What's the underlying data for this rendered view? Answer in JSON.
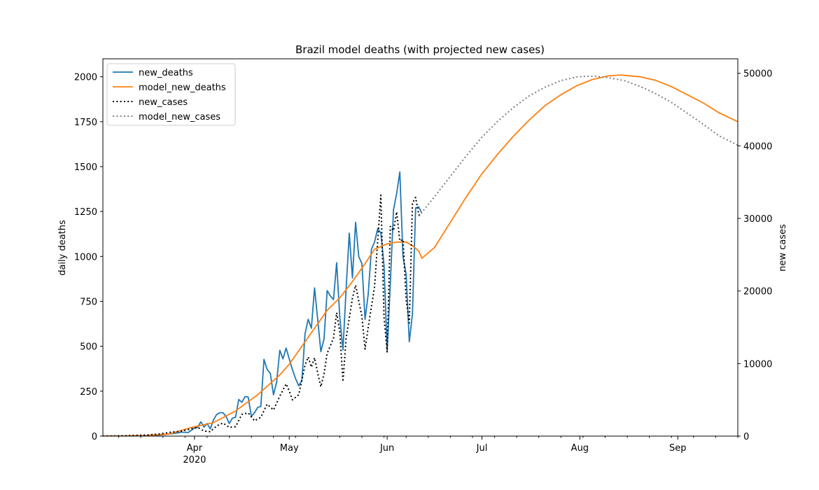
{
  "chart_data": {
    "type": "line",
    "title": "Brazil model deaths (with projected new cases)",
    "ylabel": "daily deaths",
    "y2label": "new cases",
    "xlabel": "",
    "x_range": [
      "2020-03-03",
      "2020-09-20"
    ],
    "ylim": [
      0,
      2100
    ],
    "y2lim": [
      0,
      52000
    ],
    "y_ticks": [
      0,
      250,
      500,
      750,
      1000,
      1250,
      1500,
      1750,
      2000
    ],
    "y2_ticks": [
      0,
      10000,
      20000,
      30000,
      40000,
      50000
    ],
    "x_ticks": [
      {
        "date": "2020-04-01",
        "label": "Apr",
        "sublabel": "2020"
      },
      {
        "date": "2020-05-01",
        "label": "May",
        "sublabel": ""
      },
      {
        "date": "2020-06-01",
        "label": "Jun",
        "sublabel": ""
      },
      {
        "date": "2020-07-01",
        "label": "Jul",
        "sublabel": ""
      },
      {
        "date": "2020-08-01",
        "label": "Aug",
        "sublabel": ""
      },
      {
        "date": "2020-09-01",
        "label": "Sep",
        "sublabel": ""
      }
    ],
    "legend_position": "upper-left",
    "grid": false,
    "series": [
      {
        "name": "new_deaths",
        "axis": "left",
        "color": "#1f77b4",
        "style": "solid",
        "points": [
          [
            "2020-03-03",
            0
          ],
          [
            "2020-03-10",
            0
          ],
          [
            "2020-03-17",
            1
          ],
          [
            "2020-03-20",
            4
          ],
          [
            "2020-03-23",
            10
          ],
          [
            "2020-03-26",
            16
          ],
          [
            "2020-03-28",
            22
          ],
          [
            "2020-03-30",
            20
          ],
          [
            "2020-04-01",
            45
          ],
          [
            "2020-04-02",
            48
          ],
          [
            "2020-04-03",
            80
          ],
          [
            "2020-04-04",
            50
          ],
          [
            "2020-04-05",
            70
          ],
          [
            "2020-04-06",
            40
          ],
          [
            "2020-04-07",
            90
          ],
          [
            "2020-04-08",
            120
          ],
          [
            "2020-04-09",
            130
          ],
          [
            "2020-04-10",
            130
          ],
          [
            "2020-04-11",
            110
          ],
          [
            "2020-04-12",
            70
          ],
          [
            "2020-04-13",
            100
          ],
          [
            "2020-04-14",
            105
          ],
          [
            "2020-04-15",
            204
          ],
          [
            "2020-04-16",
            188
          ],
          [
            "2020-04-17",
            220
          ],
          [
            "2020-04-18",
            217
          ],
          [
            "2020-04-19",
            110
          ],
          [
            "2020-04-20",
            130
          ],
          [
            "2020-04-21",
            160
          ],
          [
            "2020-04-22",
            165
          ],
          [
            "2020-04-23",
            427
          ],
          [
            "2020-04-24",
            370
          ],
          [
            "2020-04-25",
            350
          ],
          [
            "2020-04-26",
            230
          ],
          [
            "2020-04-27",
            300
          ],
          [
            "2020-04-28",
            478
          ],
          [
            "2020-04-29",
            430
          ],
          [
            "2020-04-30",
            490
          ],
          [
            "2020-05-01",
            430
          ],
          [
            "2020-05-02",
            370
          ],
          [
            "2020-05-03",
            320
          ],
          [
            "2020-05-04",
            280
          ],
          [
            "2020-05-05",
            310
          ],
          [
            "2020-05-06",
            570
          ],
          [
            "2020-05-07",
            650
          ],
          [
            "2020-05-08",
            600
          ],
          [
            "2020-05-09",
            825
          ],
          [
            "2020-05-10",
            650
          ],
          [
            "2020-05-11",
            470
          ],
          [
            "2020-05-12",
            540
          ],
          [
            "2020-05-13",
            810
          ],
          [
            "2020-05-14",
            780
          ],
          [
            "2020-05-15",
            760
          ],
          [
            "2020-05-16",
            965
          ],
          [
            "2020-05-17",
            660
          ],
          [
            "2020-05-18",
            480
          ],
          [
            "2020-05-19",
            820
          ],
          [
            "2020-05-20",
            1130
          ],
          [
            "2020-05-21",
            880
          ],
          [
            "2020-05-22",
            1190
          ],
          [
            "2020-05-23",
            1000
          ],
          [
            "2020-05-24",
            960
          ],
          [
            "2020-05-25",
            650
          ],
          [
            "2020-05-26",
            790
          ],
          [
            "2020-05-27",
            1040
          ],
          [
            "2020-05-28",
            1080
          ],
          [
            "2020-05-29",
            1155
          ],
          [
            "2020-05-30",
            1130
          ],
          [
            "2020-05-31",
            950
          ],
          [
            "2020-06-01",
            480
          ],
          [
            "2020-06-02",
            850
          ],
          [
            "2020-06-03",
            1260
          ],
          [
            "2020-06-04",
            1350
          ],
          [
            "2020-06-05",
            1470
          ],
          [
            "2020-06-06",
            1000
          ],
          [
            "2020-06-07",
            900
          ],
          [
            "2020-06-08",
            525
          ],
          [
            "2020-06-09",
            680
          ],
          [
            "2020-06-10",
            1270
          ],
          [
            "2020-06-11",
            1275
          ],
          [
            "2020-06-12",
            1240
          ]
        ]
      },
      {
        "name": "model_new_deaths",
        "axis": "left",
        "color": "#ff7f0e",
        "style": "solid",
        "points": [
          [
            "2020-03-03",
            0
          ],
          [
            "2020-03-10",
            1
          ],
          [
            "2020-03-17",
            4
          ],
          [
            "2020-03-24",
            12
          ],
          [
            "2020-03-31",
            48
          ],
          [
            "2020-04-07",
            75
          ],
          [
            "2020-04-14",
            140
          ],
          [
            "2020-04-21",
            230
          ],
          [
            "2020-04-28",
            340
          ],
          [
            "2020-05-01",
            400
          ],
          [
            "2020-05-05",
            500
          ],
          [
            "2020-05-09",
            600
          ],
          [
            "2020-05-13",
            700
          ],
          [
            "2020-05-17",
            770
          ],
          [
            "2020-05-21",
            860
          ],
          [
            "2020-05-25",
            960
          ],
          [
            "2020-05-28",
            1040
          ],
          [
            "2020-06-01",
            1070
          ],
          [
            "2020-06-04",
            1080
          ],
          [
            "2020-06-07",
            1080
          ],
          [
            "2020-06-09",
            1060
          ],
          [
            "2020-06-11",
            1030
          ],
          [
            "2020-06-12",
            990
          ],
          [
            "2020-06-16",
            1050
          ],
          [
            "2020-06-21",
            1190
          ],
          [
            "2020-06-26",
            1330
          ],
          [
            "2020-07-01",
            1460
          ],
          [
            "2020-07-06",
            1570
          ],
          [
            "2020-07-11",
            1670
          ],
          [
            "2020-07-16",
            1760
          ],
          [
            "2020-07-21",
            1840
          ],
          [
            "2020-07-26",
            1900
          ],
          [
            "2020-07-31",
            1950
          ],
          [
            "2020-08-05",
            1985
          ],
          [
            "2020-08-10",
            2005
          ],
          [
            "2020-08-14",
            2010
          ],
          [
            "2020-08-20",
            2000
          ],
          [
            "2020-08-25",
            1980
          ],
          [
            "2020-08-30",
            1945
          ],
          [
            "2020-09-04",
            1900
          ],
          [
            "2020-09-09",
            1855
          ],
          [
            "2020-09-14",
            1800
          ],
          [
            "2020-09-20",
            1750
          ]
        ]
      },
      {
        "name": "new_cases",
        "axis": "right",
        "color": "#000000",
        "style": "dotted",
        "points": [
          [
            "2020-03-03",
            0
          ],
          [
            "2020-03-10",
            50
          ],
          [
            "2020-03-17",
            150
          ],
          [
            "2020-03-21",
            300
          ],
          [
            "2020-03-24",
            500
          ],
          [
            "2020-03-28",
            700
          ],
          [
            "2020-03-31",
            1000
          ],
          [
            "2020-04-02",
            1200
          ],
          [
            "2020-04-04",
            700
          ],
          [
            "2020-04-06",
            600
          ],
          [
            "2020-04-08",
            1400
          ],
          [
            "2020-04-10",
            1800
          ],
          [
            "2020-04-12",
            1200
          ],
          [
            "2020-04-14",
            1300
          ],
          [
            "2020-04-16",
            3000
          ],
          [
            "2020-04-18",
            3200
          ],
          [
            "2020-04-20",
            2100
          ],
          [
            "2020-04-22",
            2600
          ],
          [
            "2020-04-24",
            4400
          ],
          [
            "2020-04-26",
            3600
          ],
          [
            "2020-04-28",
            5500
          ],
          [
            "2020-04-30",
            7200
          ],
          [
            "2020-05-01",
            6200
          ],
          [
            "2020-05-02",
            5000
          ],
          [
            "2020-05-04",
            5700
          ],
          [
            "2020-05-06",
            9800
          ],
          [
            "2020-05-07",
            10900
          ],
          [
            "2020-05-08",
            9500
          ],
          [
            "2020-05-09",
            10800
          ],
          [
            "2020-05-10",
            8700
          ],
          [
            "2020-05-11",
            6800
          ],
          [
            "2020-05-12",
            8600
          ],
          [
            "2020-05-13",
            11400
          ],
          [
            "2020-05-15",
            13500
          ],
          [
            "2020-05-16",
            17000
          ],
          [
            "2020-05-17",
            14400
          ],
          [
            "2020-05-18",
            7500
          ],
          [
            "2020-05-19",
            13500
          ],
          [
            "2020-05-21",
            19000
          ],
          [
            "2020-05-22",
            20800
          ],
          [
            "2020-05-23",
            18600
          ],
          [
            "2020-05-24",
            16500
          ],
          [
            "2020-05-25",
            12000
          ],
          [
            "2020-05-26",
            15000
          ],
          [
            "2020-05-28",
            20600
          ],
          [
            "2020-05-29",
            26900
          ],
          [
            "2020-05-30",
            33200
          ],
          [
            "2020-05-31",
            16400
          ],
          [
            "2020-06-01",
            11600
          ],
          [
            "2020-06-02",
            28900
          ],
          [
            "2020-06-03",
            28300
          ],
          [
            "2020-06-04",
            30900
          ],
          [
            "2020-06-05",
            26900
          ],
          [
            "2020-06-06",
            27100
          ],
          [
            "2020-06-07",
            18900
          ],
          [
            "2020-06-08",
            15600
          ],
          [
            "2020-06-09",
            32100
          ],
          [
            "2020-06-10",
            32900
          ],
          [
            "2020-06-11",
            30500
          ],
          [
            "2020-06-12",
            30400
          ]
        ]
      },
      {
        "name": "model_new_cases",
        "axis": "right",
        "color": "#7f7f7f",
        "style": "dotted",
        "points": [
          [
            "2020-06-11",
            30300
          ],
          [
            "2020-06-16",
            33000
          ],
          [
            "2020-06-21",
            35800
          ],
          [
            "2020-06-26",
            38600
          ],
          [
            "2020-07-01",
            41200
          ],
          [
            "2020-07-06",
            43400
          ],
          [
            "2020-07-11",
            45300
          ],
          [
            "2020-07-16",
            46900
          ],
          [
            "2020-07-21",
            48100
          ],
          [
            "2020-07-26",
            49000
          ],
          [
            "2020-07-31",
            49500
          ],
          [
            "2020-08-03",
            49600
          ],
          [
            "2020-08-06",
            49600
          ],
          [
            "2020-08-10",
            49400
          ],
          [
            "2020-08-15",
            49000
          ],
          [
            "2020-08-20",
            48200
          ],
          [
            "2020-08-25",
            47200
          ],
          [
            "2020-08-30",
            46000
          ],
          [
            "2020-09-04",
            44500
          ],
          [
            "2020-09-09",
            43000
          ],
          [
            "2020-09-14",
            41400
          ],
          [
            "2020-09-20",
            40100
          ]
        ]
      }
    ]
  }
}
